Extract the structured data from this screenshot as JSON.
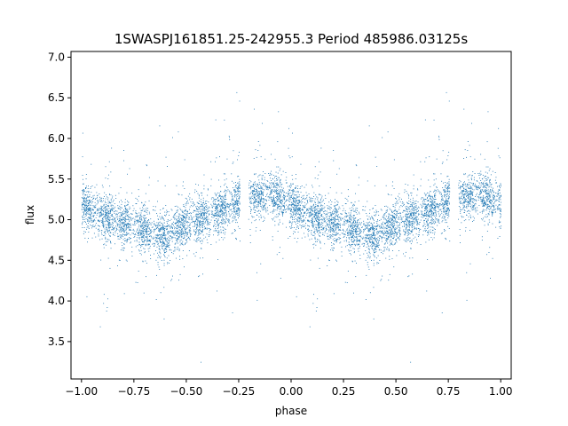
{
  "chart_data": {
    "type": "scatter",
    "title": "1SWASPJ161851.25-242955.3 Period 485986.03125s",
    "xlabel": "phase",
    "ylabel": "flux",
    "xlim": [
      -1.05,
      1.05
    ],
    "ylim": [
      3.04,
      7.07
    ],
    "x_ticks": [
      -1.0,
      -0.75,
      -0.5,
      -0.25,
      0.0,
      0.25,
      0.5,
      0.75,
      1.0
    ],
    "x_tick_labels": [
      "−1.00",
      "−0.75",
      "−0.50",
      "−0.25",
      "0.00",
      "0.25",
      "0.50",
      "0.75",
      "1.00"
    ],
    "y_ticks": [
      3.5,
      4.0,
      4.5,
      5.0,
      5.5,
      6.0,
      6.5,
      7.0
    ],
    "y_tick_labels": [
      "3.5",
      "4.0",
      "4.5",
      "5.0",
      "5.5",
      "6.0",
      "6.5",
      "7.0"
    ],
    "grid": false,
    "marker_color": "#1f77b4",
    "phase_profile": {
      "phase": [
        0.0,
        0.1,
        0.2,
        0.3,
        0.4,
        0.5,
        0.6,
        0.7,
        0.8,
        0.9,
        1.0
      ],
      "median_flux": [
        5.2,
        5.05,
        4.95,
        4.88,
        4.8,
        4.95,
        5.05,
        5.15,
        5.3,
        5.3,
        5.2
      ]
    },
    "observation_gaps": [
      [
        -0.2,
        -0.25
      ],
      [
        0.75,
        0.8
      ]
    ],
    "flux_range": [
      3.2,
      6.9
    ]
  }
}
